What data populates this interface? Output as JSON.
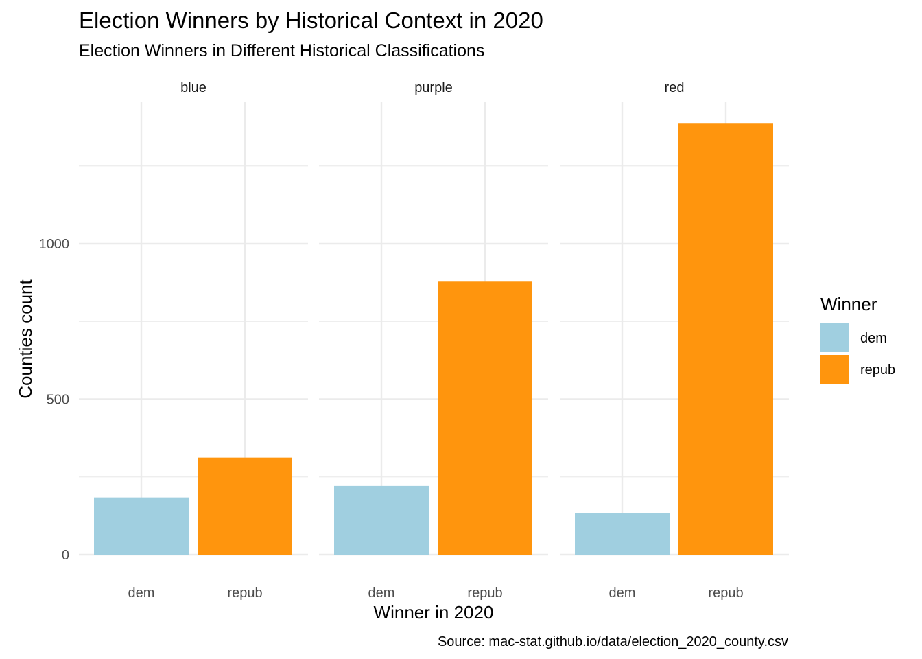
{
  "chart_data": {
    "type": "bar",
    "title": "Election Winners by Historical Context in 2020",
    "subtitle": "Election Winners in Different Historical Classifications",
    "xlabel": "Winner in 2020",
    "ylabel": "Counties count",
    "caption": "Source: mac-stat.github.io/data/election_2020_county.csv",
    "facets": [
      "blue",
      "purple",
      "red"
    ],
    "categories": [
      "dem",
      "repub"
    ],
    "colors": {
      "dem": "#a0cfe0",
      "repub": "#ff950d"
    },
    "ylim": [
      0,
      1400
    ],
    "yticks": [
      0,
      500,
      1000
    ],
    "legend": {
      "title": "Winner",
      "position": "right",
      "entries": [
        "dem",
        "repub"
      ]
    },
    "panels": [
      {
        "facet": "blue",
        "values": [
          184,
          312
        ]
      },
      {
        "facet": "purple",
        "values": [
          221,
          878
        ]
      },
      {
        "facet": "red",
        "values": [
          133,
          1388
        ]
      }
    ]
  }
}
